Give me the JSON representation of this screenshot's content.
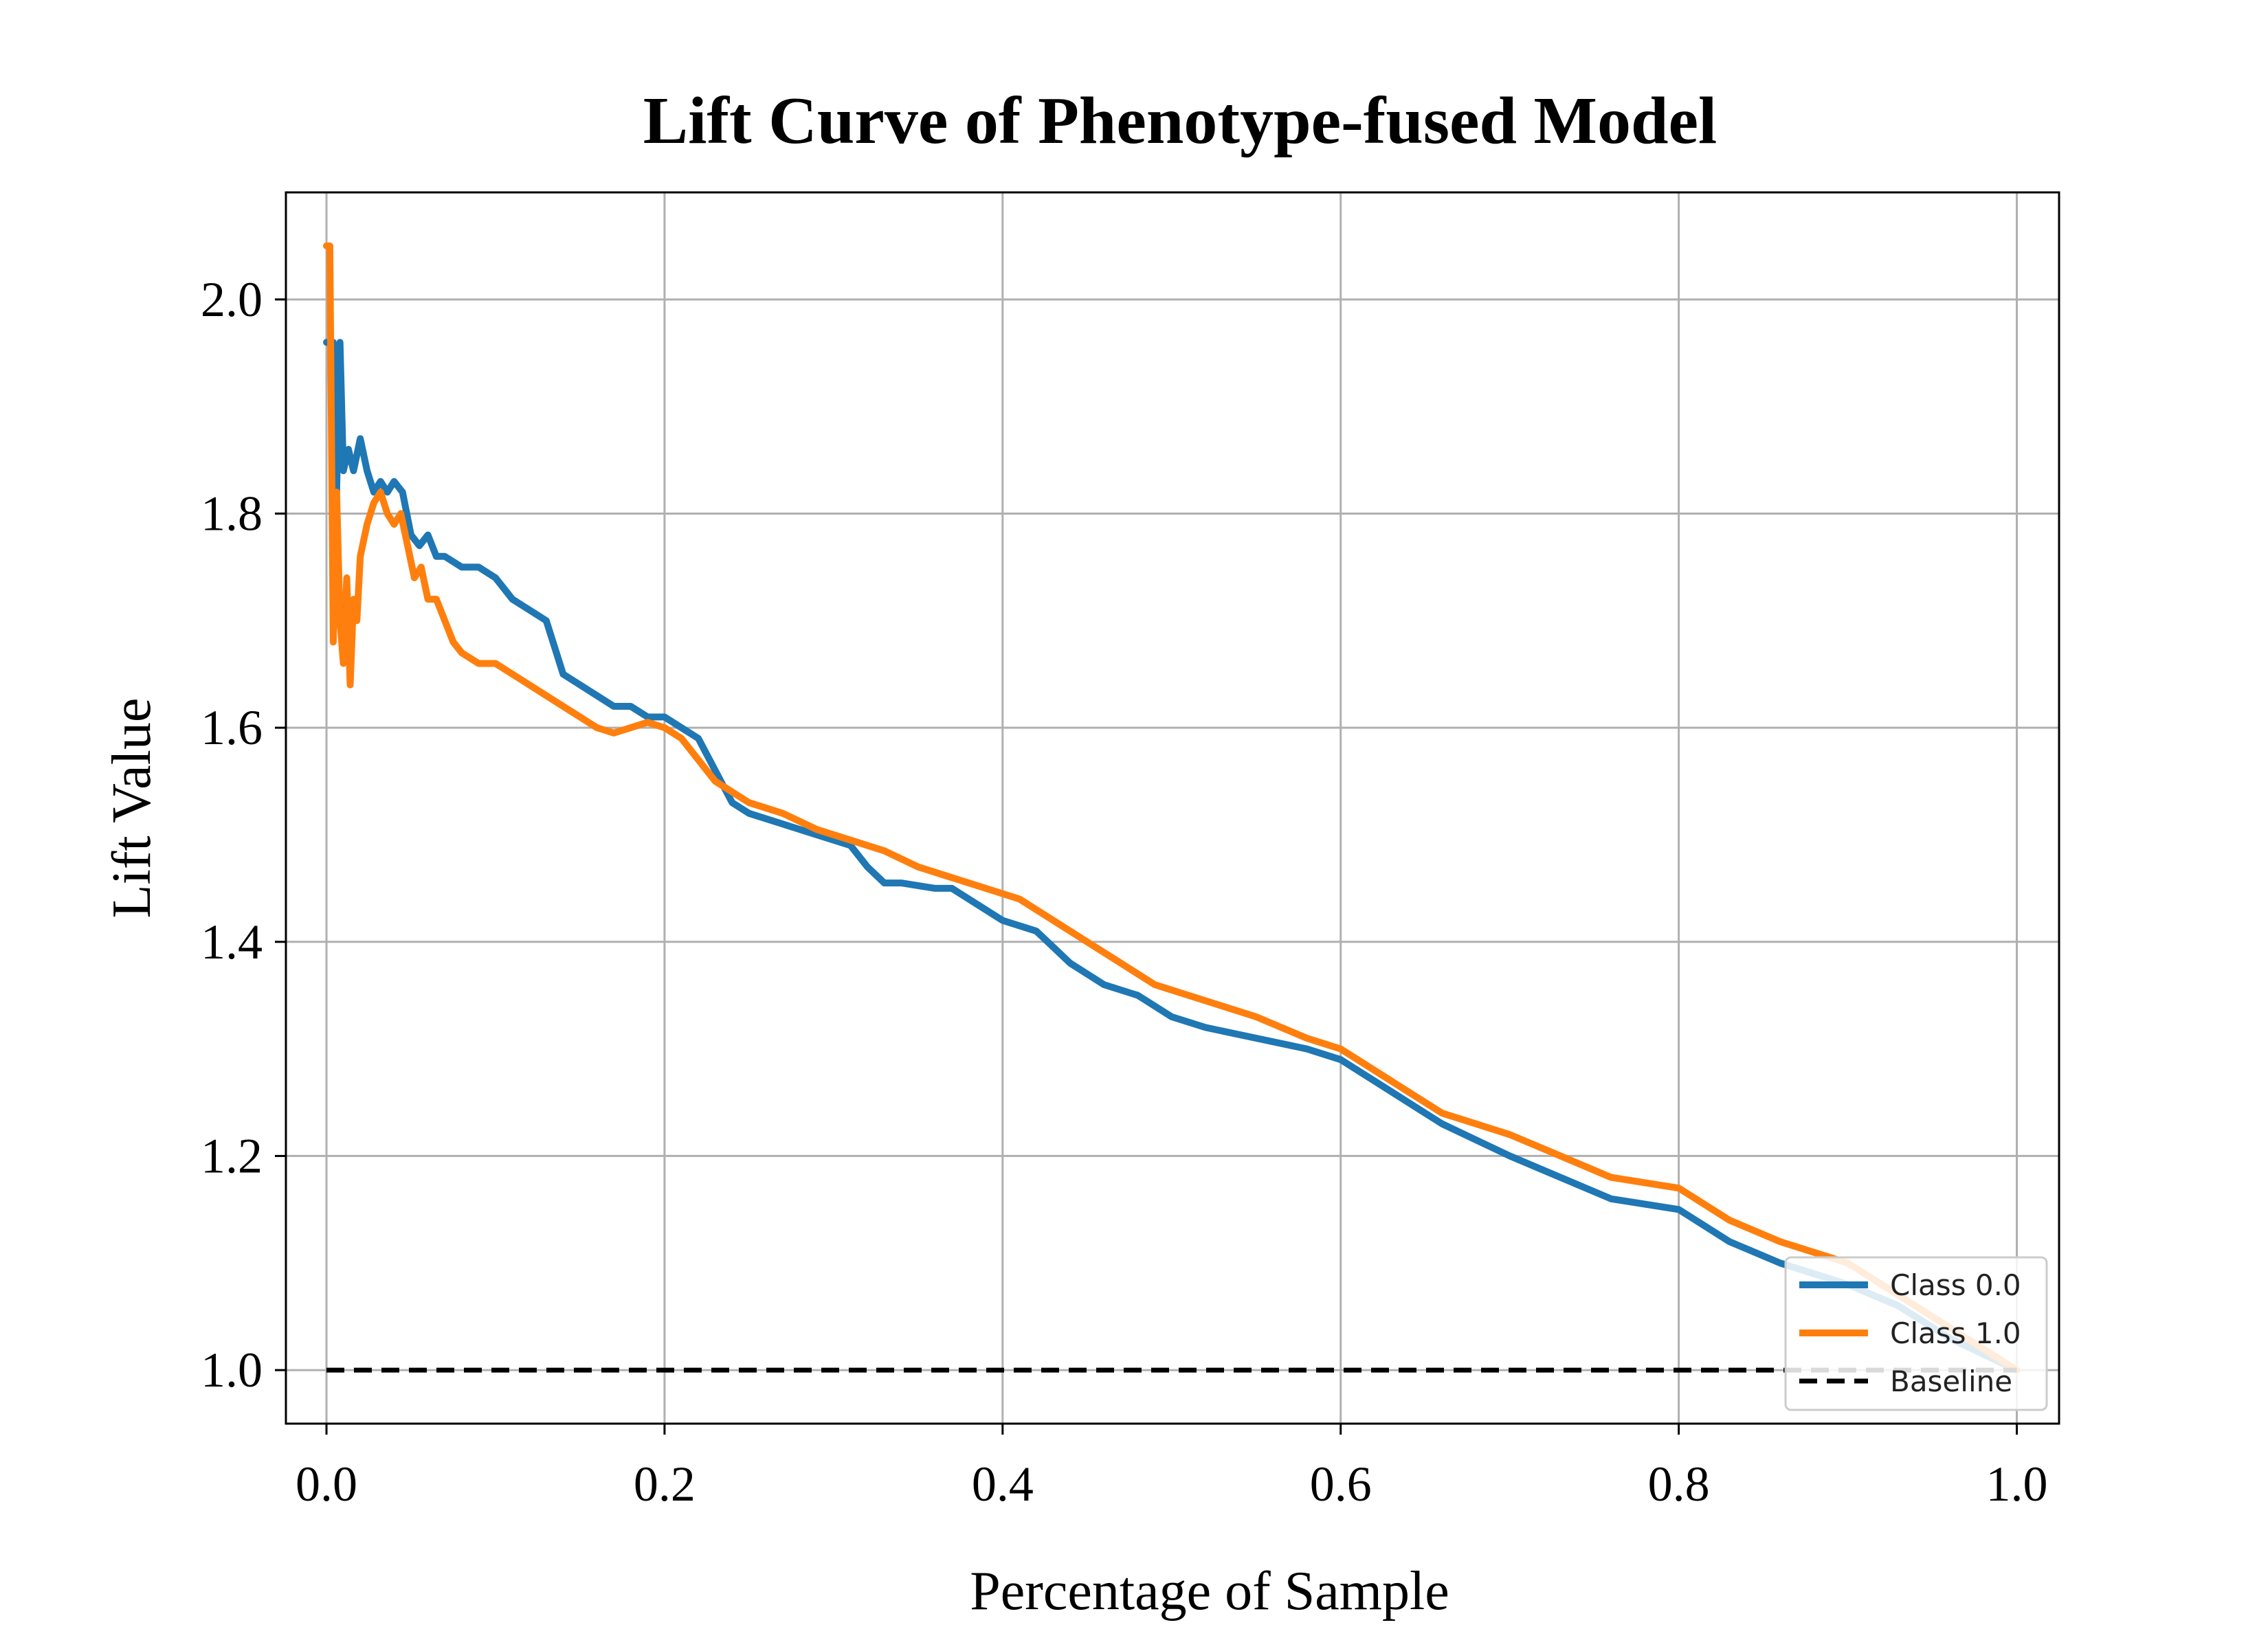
{
  "chart_data": {
    "type": "line",
    "title": "Lift Curve of Phenotype-fused Model",
    "xlabel": "Percentage of Sample",
    "ylabel": "Lift Value",
    "xlim": [
      -0.024,
      1.025
    ],
    "ylim": [
      0.95,
      2.1
    ],
    "xticks": [
      0.0,
      0.2,
      0.4,
      0.6,
      0.8,
      1.0
    ],
    "xtick_labels": [
      "0.0",
      "0.2",
      "0.4",
      "0.6",
      "0.8",
      "1.0"
    ],
    "yticks": [
      1.0,
      1.2,
      1.4,
      1.6,
      1.8,
      2.0
    ],
    "ytick_labels": [
      "1.0",
      "1.2",
      "1.4",
      "1.6",
      "1.8",
      "2.0"
    ],
    "grid": true,
    "legend_position": "lower-right",
    "series": [
      {
        "name": "Class 0.0",
        "color": "#1f77b4",
        "style": "solid",
        "x": [
          0.0,
          0.004,
          0.006,
          0.008,
          0.01,
          0.013,
          0.016,
          0.02,
          0.024,
          0.028,
          0.032,
          0.036,
          0.04,
          0.045,
          0.05,
          0.055,
          0.06,
          0.065,
          0.07,
          0.08,
          0.09,
          0.1,
          0.11,
          0.12,
          0.13,
          0.14,
          0.15,
          0.16,
          0.17,
          0.18,
          0.19,
          0.2,
          0.21,
          0.22,
          0.23,
          0.24,
          0.25,
          0.27,
          0.29,
          0.31,
          0.32,
          0.33,
          0.34,
          0.36,
          0.37,
          0.38,
          0.4,
          0.42,
          0.44,
          0.46,
          0.48,
          0.5,
          0.52,
          0.55,
          0.58,
          0.6,
          0.63,
          0.66,
          0.7,
          0.73,
          0.76,
          0.8,
          0.83,
          0.86,
          0.9,
          0.93,
          0.96,
          1.0
        ],
        "y": [
          1.96,
          1.96,
          1.82,
          1.96,
          1.84,
          1.86,
          1.84,
          1.87,
          1.84,
          1.82,
          1.83,
          1.82,
          1.83,
          1.82,
          1.78,
          1.77,
          1.78,
          1.76,
          1.76,
          1.75,
          1.75,
          1.74,
          1.72,
          1.71,
          1.7,
          1.65,
          1.64,
          1.63,
          1.62,
          1.62,
          1.61,
          1.61,
          1.6,
          1.59,
          1.56,
          1.53,
          1.52,
          1.51,
          1.5,
          1.49,
          1.47,
          1.455,
          1.455,
          1.45,
          1.45,
          1.44,
          1.42,
          1.41,
          1.38,
          1.36,
          1.35,
          1.33,
          1.32,
          1.31,
          1.3,
          1.29,
          1.26,
          1.23,
          1.2,
          1.18,
          1.16,
          1.15,
          1.12,
          1.1,
          1.08,
          1.06,
          1.03,
          1.0
        ]
      },
      {
        "name": "Class 1.0",
        "color": "#ff7f0e",
        "style": "solid",
        "x": [
          0.0,
          0.002,
          0.004,
          0.006,
          0.008,
          0.01,
          0.012,
          0.014,
          0.016,
          0.018,
          0.02,
          0.024,
          0.028,
          0.032,
          0.036,
          0.04,
          0.044,
          0.048,
          0.052,
          0.056,
          0.06,
          0.065,
          0.07,
          0.075,
          0.08,
          0.09,
          0.1,
          0.11,
          0.12,
          0.13,
          0.14,
          0.15,
          0.16,
          0.17,
          0.18,
          0.19,
          0.2,
          0.21,
          0.22,
          0.23,
          0.24,
          0.25,
          0.27,
          0.29,
          0.31,
          0.33,
          0.35,
          0.37,
          0.39,
          0.41,
          0.43,
          0.45,
          0.47,
          0.49,
          0.52,
          0.55,
          0.58,
          0.6,
          0.63,
          0.66,
          0.7,
          0.73,
          0.76,
          0.8,
          0.83,
          0.86,
          0.9,
          0.93,
          0.96,
          1.0
        ],
        "y": [
          2.05,
          2.05,
          1.68,
          1.82,
          1.7,
          1.66,
          1.74,
          1.64,
          1.72,
          1.7,
          1.76,
          1.79,
          1.81,
          1.82,
          1.8,
          1.79,
          1.8,
          1.77,
          1.74,
          1.75,
          1.72,
          1.72,
          1.7,
          1.68,
          1.67,
          1.66,
          1.66,
          1.65,
          1.64,
          1.63,
          1.62,
          1.61,
          1.6,
          1.595,
          1.6,
          1.605,
          1.6,
          1.59,
          1.57,
          1.55,
          1.54,
          1.53,
          1.52,
          1.505,
          1.495,
          1.485,
          1.47,
          1.46,
          1.45,
          1.44,
          1.42,
          1.4,
          1.38,
          1.36,
          1.345,
          1.33,
          1.31,
          1.3,
          1.27,
          1.24,
          1.22,
          1.2,
          1.18,
          1.17,
          1.14,
          1.12,
          1.1,
          1.07,
          1.04,
          1.0
        ]
      },
      {
        "name": "Baseline",
        "color": "#000000",
        "style": "dashed",
        "x": [
          0.0,
          1.0
        ],
        "y": [
          1.0,
          1.0
        ]
      }
    ]
  }
}
